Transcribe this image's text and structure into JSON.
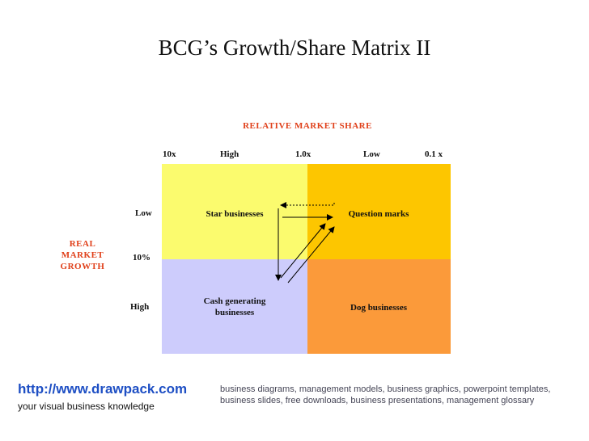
{
  "title": "BCG’s Growth/Share Matrix II",
  "x_axis": {
    "title": "RELATIVE MARKET SHARE",
    "ticks": {
      "left": "10x",
      "high": "High",
      "mid": "1.0x",
      "low": "Low",
      "right": "0.1 x"
    }
  },
  "y_axis": {
    "title": "REAL MARKET GROWTH",
    "ticks": {
      "low": "Low",
      "mid": "10%",
      "high": "High"
    }
  },
  "quadrants": {
    "star": "Star businesses",
    "question": "Question marks",
    "cash": "Cash generating businesses",
    "dog": "Dog businesses"
  },
  "colors": {
    "star": "#fbfb6e",
    "question": "#fdc600",
    "cash": "#cdccfc",
    "dog": "#fb9a3a",
    "accent_text": "#e0401a",
    "link": "#1e4fc4"
  },
  "footer": {
    "url": "http://www.drawpack.com",
    "tagline": "your visual business knowledge",
    "keywords": "business diagrams, management models, business graphics, powerpoint templates, business slides, free downloads, business presentations, management glossary"
  }
}
